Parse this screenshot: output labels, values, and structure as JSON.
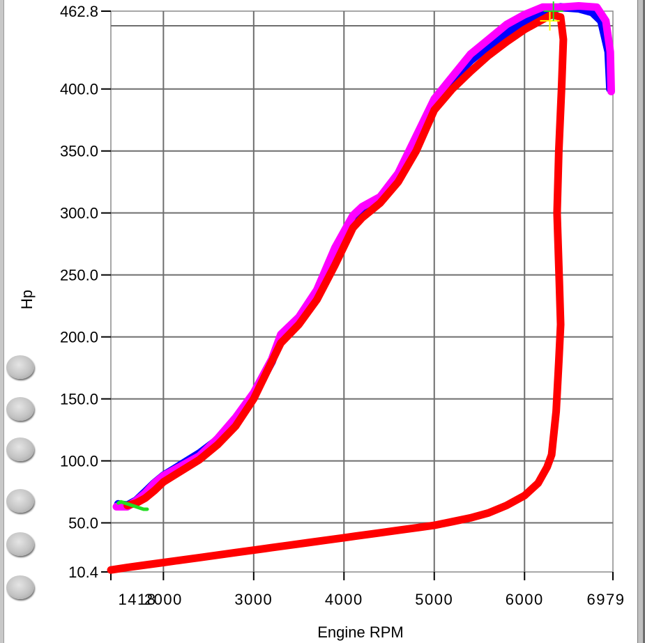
{
  "chart_data": {
    "type": "line",
    "xlabel": "Engine RPM",
    "ylabel": "Hp",
    "xlim": [
      1418,
      6979
    ],
    "ylim": [
      10.4,
      462.8
    ],
    "x_ticks": [
      {
        "value": 1418,
        "label": "1418"
      },
      {
        "value": 2000,
        "label": "2000"
      },
      {
        "value": 3000,
        "label": "3000"
      },
      {
        "value": 4000,
        "label": "4000"
      },
      {
        "value": 5000,
        "label": "5000"
      },
      {
        "value": 6000,
        "label": "6000"
      },
      {
        "value": 6979,
        "label": "6979"
      }
    ],
    "y_ticks": [
      {
        "value": 10.4,
        "label": "10.4"
      },
      {
        "value": 50.0,
        "label": "50.0"
      },
      {
        "value": 100.0,
        "label": "100.0"
      },
      {
        "value": 150.0,
        "label": "150.0"
      },
      {
        "value": 200.0,
        "label": "200.0"
      },
      {
        "value": 250.0,
        "label": "250.0"
      },
      {
        "value": 300.0,
        "label": "300.0"
      },
      {
        "value": 350.0,
        "label": "350.0"
      },
      {
        "value": 400.0,
        "label": "400.0"
      },
      {
        "value": 462.8,
        "label": "462.8"
      }
    ],
    "grid": true,
    "series": [
      {
        "color": "#0000ff",
        "points": [
          [
            1500,
            65
          ],
          [
            1600,
            64
          ],
          [
            1700,
            68
          ],
          [
            1800,
            75
          ],
          [
            1900,
            82
          ],
          [
            2000,
            88
          ],
          [
            2200,
            97
          ],
          [
            2400,
            106
          ],
          [
            2600,
            117
          ],
          [
            2800,
            134
          ],
          [
            3000,
            153
          ],
          [
            3200,
            180
          ],
          [
            3300,
            200
          ],
          [
            3500,
            215
          ],
          [
            3700,
            237
          ],
          [
            3900,
            270
          ],
          [
            4100,
            297
          ],
          [
            4200,
            304
          ],
          [
            4400,
            312
          ],
          [
            4600,
            330
          ],
          [
            4800,
            360
          ],
          [
            5000,
            390
          ],
          [
            5200,
            408
          ],
          [
            5400,
            423
          ],
          [
            5600,
            435
          ],
          [
            5800,
            445
          ],
          [
            6000,
            455
          ],
          [
            6200,
            462
          ],
          [
            6400,
            466
          ],
          [
            6600,
            465
          ],
          [
            6750,
            462
          ],
          [
            6850,
            455
          ],
          [
            6930,
            430
          ],
          [
            6950,
            400
          ]
        ]
      },
      {
        "color": "#ff00ff",
        "points": [
          [
            1480,
            63
          ],
          [
            1600,
            63
          ],
          [
            1700,
            68
          ],
          [
            1800,
            74
          ],
          [
            1900,
            82
          ],
          [
            2000,
            88
          ],
          [
            2200,
            96
          ],
          [
            2400,
            104
          ],
          [
            2600,
            118
          ],
          [
            2800,
            135
          ],
          [
            3000,
            155
          ],
          [
            3200,
            182
          ],
          [
            3300,
            202
          ],
          [
            3500,
            216
          ],
          [
            3700,
            238
          ],
          [
            3900,
            272
          ],
          [
            4100,
            298
          ],
          [
            4200,
            305
          ],
          [
            4400,
            313
          ],
          [
            4600,
            332
          ],
          [
            4800,
            362
          ],
          [
            5000,
            392
          ],
          [
            5200,
            410
          ],
          [
            5400,
            428
          ],
          [
            5600,
            440
          ],
          [
            5800,
            452
          ],
          [
            6000,
            460
          ],
          [
            6200,
            466
          ],
          [
            6400,
            466
          ],
          [
            6600,
            467
          ],
          [
            6800,
            466
          ],
          [
            6900,
            455
          ],
          [
            6950,
            430
          ],
          [
            6960,
            398
          ]
        ]
      },
      {
        "color": "#ff0000",
        "points": [
          [
            1418,
            12
          ],
          [
            1600,
            14
          ],
          [
            1800,
            16
          ],
          [
            2000,
            18
          ],
          [
            2200,
            20
          ],
          [
            2400,
            22
          ],
          [
            2600,
            24
          ],
          [
            2800,
            26
          ],
          [
            3000,
            28
          ],
          [
            3200,
            30
          ],
          [
            3400,
            32
          ],
          [
            3600,
            34
          ],
          [
            3800,
            36
          ],
          [
            4000,
            38
          ],
          [
            4200,
            40
          ],
          [
            4400,
            42
          ],
          [
            4600,
            44
          ],
          [
            4800,
            46
          ],
          [
            5000,
            48
          ],
          [
            5200,
            51
          ],
          [
            5400,
            54
          ],
          [
            5600,
            58
          ],
          [
            5800,
            64
          ],
          [
            6000,
            72
          ],
          [
            6150,
            82
          ],
          [
            6250,
            95
          ],
          [
            6300,
            105
          ],
          [
            6350,
            140
          ],
          [
            6380,
            180
          ],
          [
            6400,
            210
          ],
          [
            6385,
            245
          ],
          [
            6360,
            300
          ],
          [
            6380,
            350
          ],
          [
            6410,
            400
          ],
          [
            6430,
            440
          ],
          [
            6400,
            458
          ],
          [
            6300,
            460
          ],
          [
            6200,
            456
          ],
          [
            6000,
            448
          ],
          [
            5800,
            438
          ],
          [
            5600,
            427
          ],
          [
            5400,
            414
          ],
          [
            5200,
            400
          ],
          [
            5000,
            383
          ],
          [
            4800,
            350
          ],
          [
            4600,
            325
          ],
          [
            4400,
            308
          ],
          [
            4200,
            296
          ],
          [
            4100,
            288
          ],
          [
            3900,
            258
          ],
          [
            3700,
            230
          ],
          [
            3500,
            210
          ],
          [
            3300,
            195
          ],
          [
            3200,
            180
          ],
          [
            3000,
            150
          ],
          [
            2800,
            128
          ],
          [
            2600,
            113
          ],
          [
            2400,
            101
          ],
          [
            2200,
            92
          ],
          [
            2000,
            83
          ],
          [
            1900,
            76
          ],
          [
            1800,
            70
          ],
          [
            1700,
            66
          ],
          [
            1600,
            64
          ]
        ]
      },
      {
        "color": "#22dd22",
        "points": [
          [
            1500,
            66
          ],
          [
            1530,
            67
          ],
          [
            1780,
            61
          ],
          [
            1820,
            61
          ]
        ]
      }
    ],
    "markers": [
      {
        "type": "cursor",
        "color": "#ffff00",
        "x": 6280,
        "y": 455
      },
      {
        "type": "cursor",
        "color": "#22dd22",
        "x": 6320,
        "y": 462.8
      }
    ]
  }
}
